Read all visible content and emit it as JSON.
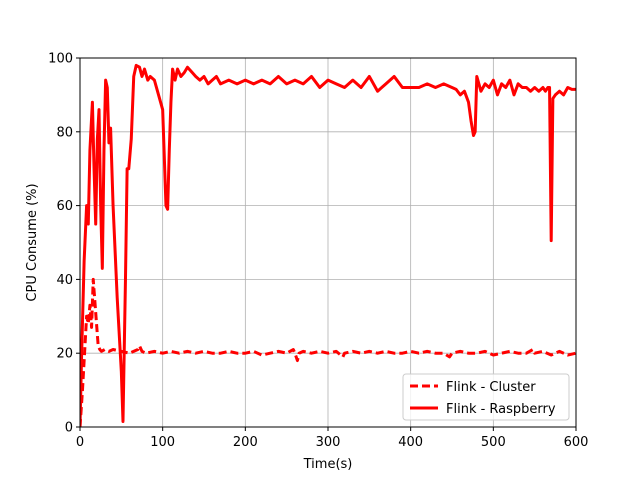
{
  "chart_data": {
    "type": "line",
    "title": "",
    "xlabel": "Time(s)",
    "ylabel": "CPU Consume (%)",
    "xlim": [
      0,
      600
    ],
    "ylim": [
      0,
      100
    ],
    "xticks": [
      0,
      100,
      200,
      300,
      400,
      500,
      600
    ],
    "yticks": [
      0,
      20,
      40,
      60,
      80,
      100
    ],
    "grid": true,
    "legend_position": "lower-right",
    "series": [
      {
        "name": "Flink - Cluster",
        "color": "#ff0000",
        "dash": "dashed",
        "x": [
          0,
          3,
          6,
          8,
          10,
          12,
          14,
          16,
          18,
          20,
          22,
          24,
          26,
          30,
          35,
          40,
          50,
          60,
          70,
          72,
          75,
          80,
          90,
          100,
          110,
          120,
          130,
          140,
          150,
          160,
          170,
          180,
          190,
          200,
          210,
          220,
          230,
          240,
          250,
          258,
          260,
          263,
          265,
          270,
          280,
          290,
          300,
          310,
          318,
          320,
          330,
          340,
          350,
          360,
          370,
          380,
          390,
          400,
          410,
          420,
          430,
          440,
          447,
          450,
          460,
          470,
          480,
          490,
          500,
          510,
          520,
          530,
          540,
          548,
          550,
          560,
          570,
          580,
          590,
          600
        ],
        "y": [
          0,
          10,
          22,
          30,
          28,
          33,
          27,
          40,
          34,
          28,
          22,
          21,
          20.5,
          21,
          20.5,
          21,
          20.5,
          20,
          21,
          22,
          20.5,
          20,
          20.5,
          20,
          20.5,
          20,
          20.5,
          20,
          20.5,
          20,
          20,
          20.5,
          20,
          20,
          20.5,
          19.5,
          20,
          20.5,
          20,
          21,
          20,
          18,
          20,
          20.5,
          20,
          20.5,
          20,
          20.5,
          19,
          20,
          20.5,
          20,
          20.5,
          20,
          20.5,
          20,
          20,
          20.5,
          20,
          20.5,
          20,
          20,
          19,
          20,
          20.5,
          20,
          20,
          20.5,
          19.5,
          20,
          20.5,
          20,
          20,
          21,
          20,
          20.5,
          19.5,
          20.5,
          19.5,
          20
        ]
      },
      {
        "name": "Flink - Raspberry",
        "color": "#ff0000",
        "dash": "solid",
        "x": [
          0,
          2,
          5,
          8,
          10,
          12,
          15,
          17,
          19,
          21,
          23,
          25,
          27,
          29,
          31,
          33,
          35,
          37,
          40,
          45,
          50,
          52,
          55,
          57,
          59,
          62,
          65,
          68,
          72,
          75,
          78,
          82,
          85,
          90,
          95,
          100,
          104,
          106,
          108,
          110,
          112,
          115,
          118,
          122,
          126,
          130,
          136,
          140,
          145,
          150,
          155,
          160,
          165,
          170,
          180,
          190,
          200,
          210,
          220,
          230,
          240,
          250,
          260,
          270,
          280,
          290,
          300,
          310,
          320,
          330,
          340,
          350,
          360,
          370,
          380,
          390,
          400,
          410,
          420,
          430,
          440,
          450,
          455,
          460,
          465,
          470,
          473,
          476,
          478,
          480,
          485,
          490,
          495,
          500,
          505,
          510,
          515,
          520,
          525,
          530,
          535,
          540,
          545,
          550,
          555,
          560,
          563,
          566,
          568,
          570,
          572,
          575,
          580,
          585,
          590,
          595,
          600
        ],
        "y": [
          0,
          20,
          45,
          60,
          55,
          75,
          88,
          70,
          55,
          78,
          86,
          60,
          43,
          75,
          94,
          92,
          77,
          81,
          60,
          35,
          15,
          1.5,
          40,
          70,
          70,
          78,
          95,
          98,
          97.5,
          95,
          97,
          94,
          95,
          94,
          90,
          86,
          60,
          59,
          75,
          88,
          97,
          94,
          97,
          95,
          96,
          97.5,
          96,
          95,
          94,
          95,
          93,
          94,
          95,
          93,
          94,
          93,
          94,
          93,
          94,
          93,
          95,
          93,
          94,
          93,
          95,
          92,
          94,
          93,
          92,
          94,
          92,
          95,
          91,
          93,
          95,
          92,
          92,
          92,
          93,
          92,
          93,
          92,
          91.5,
          90,
          91,
          88,
          83,
          79,
          80,
          95,
          91,
          93,
          92,
          94,
          90,
          93,
          92,
          94,
          90,
          93,
          92,
          92,
          91,
          92,
          91,
          92,
          91,
          92,
          92,
          50.5,
          89,
          90,
          91,
          90,
          92,
          91.5,
          91.5
        ]
      }
    ]
  }
}
